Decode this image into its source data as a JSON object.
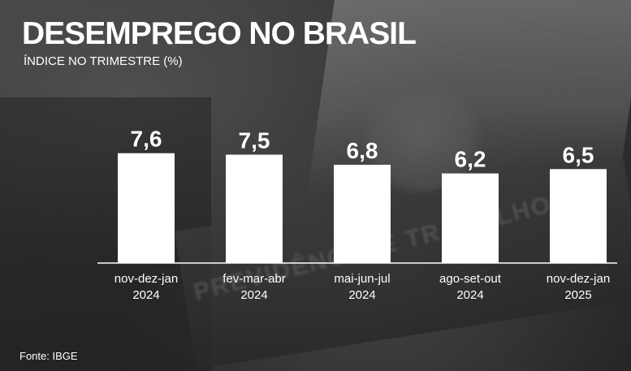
{
  "header": {
    "title": "DESEMPREGO NO BRASIL",
    "subtitle": "ÍNDICE NO TRIMESTRE (%)"
  },
  "footer": {
    "source": "Fonte: IBGE"
  },
  "background_text": "PREVIDÊNCIA E TRABALHO",
  "colors": {
    "bar": "#ffffff",
    "text": "#ffffff",
    "axis": "#ffffff"
  },
  "chart_data": {
    "type": "bar",
    "title": "DESEMPREGO NO BRASIL",
    "subtitle": "ÍNDICE NO TRIMESTRE (%)",
    "categories": [
      [
        "nov-dez-jan",
        "2024"
      ],
      [
        "fev-mar-abr",
        "2024"
      ],
      [
        "mai-jun-jul",
        "2024"
      ],
      [
        "ago-set-out",
        "2024"
      ],
      [
        "nov-dez-jan",
        "2025"
      ]
    ],
    "values": [
      7.6,
      7.5,
      6.8,
      6.2,
      6.5
    ],
    "value_labels": [
      "7,6",
      "7,5",
      "6,8",
      "6,2",
      "6,5"
    ],
    "xlabel": "",
    "ylabel": "",
    "grid": false,
    "legend": "none"
  }
}
